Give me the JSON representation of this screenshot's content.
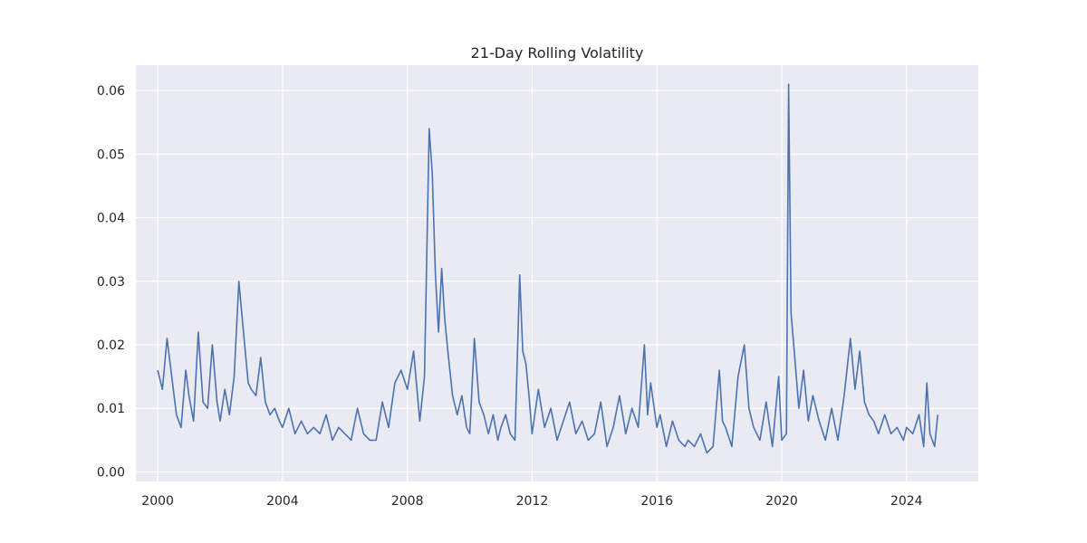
{
  "chart_data": {
    "type": "line",
    "title": "21-Day Rolling Volatility",
    "xlabel": "",
    "ylabel": "",
    "xlim": [
      1999.3,
      2026.3
    ],
    "ylim": [
      -0.0015,
      0.064
    ],
    "x_ticks": [
      2000,
      2004,
      2008,
      2012,
      2016,
      2020,
      2024
    ],
    "x_tick_labels": [
      "2000",
      "2004",
      "2008",
      "2012",
      "2016",
      "2020",
      "2024"
    ],
    "y_ticks": [
      0.0,
      0.01,
      0.02,
      0.03,
      0.04,
      0.05,
      0.06
    ],
    "y_tick_labels": [
      "0.00",
      "0.01",
      "0.02",
      "0.03",
      "0.04",
      "0.05",
      "0.06"
    ],
    "grid": true,
    "legend": false,
    "colors": {
      "background": "#EAEAF2",
      "grid": "#FFFFFF",
      "line": "#4C72B0",
      "text": "#262626"
    },
    "series": [
      {
        "x": [
          2000.0,
          2000.15,
          2000.3,
          2000.45,
          2000.6,
          2000.75,
          2000.9,
          2001.0,
          2001.15,
          2001.3,
          2001.45,
          2001.6,
          2001.75,
          2001.9,
          2002.0,
          2002.15,
          2002.3,
          2002.45,
          2002.6,
          2002.75,
          2002.9,
          2003.0,
          2003.15,
          2003.3,
          2003.45,
          2003.6,
          2003.75,
          2003.9,
          2004.0,
          2004.2,
          2004.4,
          2004.6,
          2004.8,
          2005.0,
          2005.2,
          2005.4,
          2005.6,
          2005.8,
          2006.0,
          2006.2,
          2006.4,
          2006.6,
          2006.8,
          2007.0,
          2007.2,
          2007.4,
          2007.6,
          2007.8,
          2008.0,
          2008.2,
          2008.4,
          2008.55,
          2008.7,
          2008.8,
          2008.9,
          2009.0,
          2009.1,
          2009.2,
          2009.3,
          2009.45,
          2009.6,
          2009.75,
          2009.9,
          2010.0,
          2010.15,
          2010.3,
          2010.45,
          2010.6,
          2010.75,
          2010.9,
          2011.0,
          2011.15,
          2011.3,
          2011.45,
          2011.6,
          2011.7,
          2011.8,
          2011.9,
          2012.0,
          2012.2,
          2012.4,
          2012.6,
          2012.8,
          2013.0,
          2013.2,
          2013.4,
          2013.6,
          2013.8,
          2014.0,
          2014.2,
          2014.4,
          2014.6,
          2014.8,
          2015.0,
          2015.2,
          2015.4,
          2015.6,
          2015.7,
          2015.8,
          2016.0,
          2016.1,
          2016.3,
          2016.5,
          2016.7,
          2016.9,
          2017.0,
          2017.2,
          2017.4,
          2017.6,
          2017.8,
          2018.0,
          2018.1,
          2018.2,
          2018.4,
          2018.6,
          2018.8,
          2018.95,
          2019.1,
          2019.3,
          2019.5,
          2019.7,
          2019.9,
          2020.0,
          2020.15,
          2020.22,
          2020.3,
          2020.4,
          2020.55,
          2020.7,
          2020.85,
          2021.0,
          2021.2,
          2021.4,
          2021.6,
          2021.8,
          2022.0,
          2022.2,
          2022.35,
          2022.5,
          2022.65,
          2022.8,
          2022.95,
          2023.1,
          2023.3,
          2023.5,
          2023.7,
          2023.9,
          2024.0,
          2024.2,
          2024.4,
          2024.55,
          2024.65,
          2024.75,
          2024.9,
          2025.0
        ],
        "values": [
          0.016,
          0.013,
          0.021,
          0.015,
          0.009,
          0.007,
          0.016,
          0.012,
          0.008,
          0.022,
          0.011,
          0.01,
          0.02,
          0.011,
          0.008,
          0.013,
          0.009,
          0.015,
          0.03,
          0.022,
          0.014,
          0.013,
          0.012,
          0.018,
          0.011,
          0.009,
          0.01,
          0.008,
          0.007,
          0.01,
          0.006,
          0.008,
          0.006,
          0.007,
          0.006,
          0.009,
          0.005,
          0.007,
          0.006,
          0.005,
          0.01,
          0.006,
          0.005,
          0.005,
          0.011,
          0.007,
          0.014,
          0.016,
          0.013,
          0.019,
          0.008,
          0.015,
          0.054,
          0.047,
          0.031,
          0.022,
          0.032,
          0.024,
          0.019,
          0.012,
          0.009,
          0.012,
          0.007,
          0.006,
          0.021,
          0.011,
          0.009,
          0.006,
          0.009,
          0.005,
          0.007,
          0.009,
          0.006,
          0.005,
          0.031,
          0.019,
          0.017,
          0.012,
          0.006,
          0.013,
          0.007,
          0.01,
          0.005,
          0.008,
          0.011,
          0.006,
          0.008,
          0.005,
          0.006,
          0.011,
          0.004,
          0.007,
          0.012,
          0.006,
          0.01,
          0.007,
          0.02,
          0.009,
          0.014,
          0.007,
          0.009,
          0.004,
          0.008,
          0.005,
          0.004,
          0.005,
          0.004,
          0.006,
          0.003,
          0.004,
          0.016,
          0.008,
          0.007,
          0.004,
          0.015,
          0.02,
          0.01,
          0.007,
          0.005,
          0.011,
          0.004,
          0.015,
          0.005,
          0.006,
          0.061,
          0.025,
          0.019,
          0.01,
          0.016,
          0.008,
          0.012,
          0.008,
          0.005,
          0.01,
          0.005,
          0.012,
          0.021,
          0.013,
          0.019,
          0.011,
          0.009,
          0.008,
          0.006,
          0.009,
          0.006,
          0.007,
          0.005,
          0.007,
          0.006,
          0.009,
          0.004,
          0.014,
          0.006,
          0.004,
          0.009
        ]
      }
    ]
  }
}
